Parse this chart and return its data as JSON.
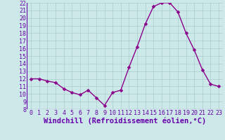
{
  "x": [
    0,
    1,
    2,
    3,
    4,
    5,
    6,
    7,
    8,
    9,
    10,
    11,
    12,
    13,
    14,
    15,
    16,
    17,
    18,
    19,
    20,
    21,
    22,
    23
  ],
  "y": [
    12,
    12,
    11.7,
    11.5,
    10.7,
    10.2,
    9.9,
    10.5,
    9.5,
    8.5,
    10.2,
    10.5,
    13.5,
    16.2,
    19.2,
    21.5,
    22.0,
    22.0,
    20.8,
    18.0,
    15.8,
    13.2,
    11.3,
    11.0
  ],
  "line_color": "#8b008b",
  "marker_color": "#8b008b",
  "bg_color": "#cce8e8",
  "grid_color": "#aacece",
  "xlabel": "Windchill (Refroidissement éolien,°C)",
  "ylim": [
    8,
    22
  ],
  "xlim_min": -0.5,
  "xlim_max": 23.5,
  "yticks": [
    8,
    9,
    10,
    11,
    12,
    13,
    14,
    15,
    16,
    17,
    18,
    19,
    20,
    21,
    22
  ],
  "xticks": [
    0,
    1,
    2,
    3,
    4,
    5,
    6,
    7,
    8,
    9,
    10,
    11,
    12,
    13,
    14,
    15,
    16,
    17,
    18,
    19,
    20,
    21,
    22,
    23
  ],
  "line_width": 1.0,
  "marker_size": 2.5,
  "xlabel_fontsize": 7.5,
  "tick_fontsize": 6.0,
  "label_color": "#6600aa"
}
